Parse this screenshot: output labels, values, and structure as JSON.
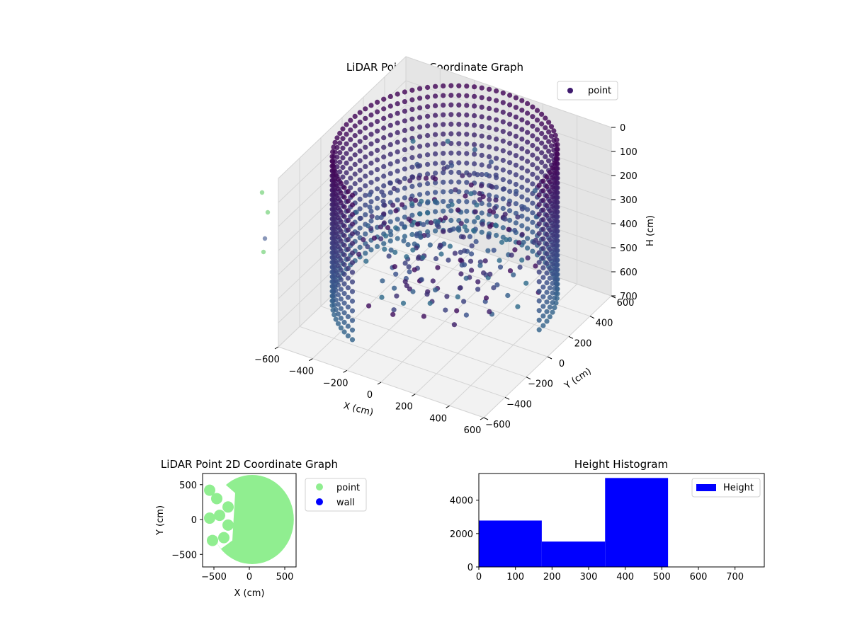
{
  "chart_data": [
    {
      "type": "scatter3d",
      "title": "LiDAR Point 3D Coordinate Graph",
      "xlabel": "X (cm)",
      "ylabel": "Y (cm)",
      "zlabel": "H (cm)",
      "xlim": [
        -600,
        600
      ],
      "ylim": [
        -600,
        600
      ],
      "zlim": [
        0,
        700
      ],
      "z_inverted": true,
      "xticks": [
        "−600",
        "−400",
        "−200",
        "0",
        "200",
        "400",
        "600"
      ],
      "yticks": [
        "−600",
        "−400",
        "−200",
        "0",
        "200",
        "400",
        "600"
      ],
      "zticks": [
        "0",
        "100",
        "200",
        "300",
        "400",
        "500",
        "600",
        "700"
      ],
      "legend": {
        "position": "top-right",
        "entries": [
          {
            "label": "point",
            "color": "#3e1a6e"
          }
        ]
      },
      "colormap": "viridis",
      "ring_radius": 580,
      "ring_arc_deg": [
        0,
        250
      ],
      "ring_height": [
        0,
        600
      ],
      "grid": true
    },
    {
      "type": "scatter",
      "title": "LiDAR Point 2D Coordinate Graph",
      "xlabel": "X (cm)",
      "ylabel": "Y (cm)",
      "xlim": [
        -660,
        660
      ],
      "ylim": [
        -680,
        660
      ],
      "xticks": [
        "−500",
        "0",
        "500"
      ],
      "xtick_values": [
        -500,
        0,
        500
      ],
      "yticks": [
        "500",
        "0",
        "−500"
      ],
      "ytick_values": [
        500,
        0,
        -500
      ],
      "legend": {
        "position": "outside-right",
        "entries": [
          {
            "label": "point",
            "color": "#90ee90"
          },
          {
            "label": "wall",
            "color": "#0000ff"
          }
        ]
      },
      "disk_radius": 600
    },
    {
      "type": "bar",
      "title": "Height Histogram",
      "bins": [
        {
          "start": 0,
          "end": 172,
          "count": 2780
        },
        {
          "start": 172,
          "end": 345,
          "count": 1520
        },
        {
          "start": 345,
          "end": 517,
          "count": 5330
        }
      ],
      "xlim": [
        0,
        780
      ],
      "ylim": [
        0,
        5600
      ],
      "xticks": [
        "0",
        "100",
        "200",
        "300",
        "400",
        "500",
        "600",
        "700"
      ],
      "xtick_values": [
        0,
        100,
        200,
        300,
        400,
        500,
        600,
        700
      ],
      "yticks": [
        "0",
        "2000",
        "4000"
      ],
      "ytick_values": [
        0,
        2000,
        4000
      ],
      "legend": {
        "position": "top-right",
        "entries": [
          {
            "label": "Height",
            "color": "#0000ff"
          }
        ]
      },
      "bar_color": "#0000ff"
    }
  ]
}
